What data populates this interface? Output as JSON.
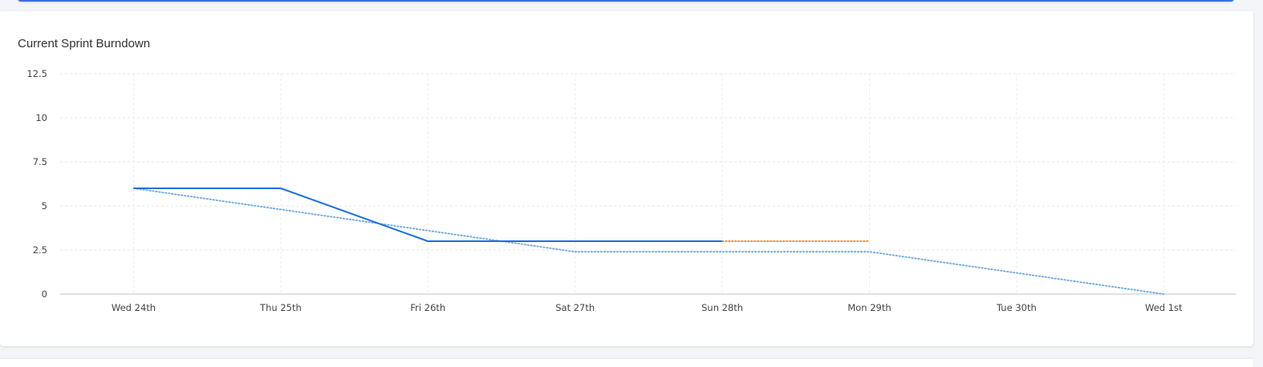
{
  "card": {
    "title": "Current Sprint Burndown"
  },
  "chart_data": {
    "type": "line",
    "title": "Current Sprint Burndown",
    "categories": [
      "Wed 24th",
      "Thu 25th",
      "Fri 26th",
      "Sat 27th",
      "Sun 28th",
      "Mon 29th",
      "Tue 30th",
      "Wed 1st"
    ],
    "ylim": [
      0,
      12.5
    ],
    "yticks": [
      "12.5",
      "10",
      "7.5",
      "5",
      "2.5",
      "0"
    ],
    "grid": true,
    "legend": "none",
    "series": [
      {
        "values": [
          6,
          6,
          3,
          3,
          3,
          null,
          null,
          null
        ],
        "style": "solid",
        "color": "#1a6fe0"
      },
      {
        "values": [
          null,
          null,
          null,
          null,
          3,
          3,
          null,
          null
        ],
        "style": "dotted",
        "color": "#f07d1a"
      },
      {
        "values": [
          6,
          4.8,
          3.6,
          2.4,
          2.4,
          2.4,
          1.2,
          0
        ],
        "style": "dotted",
        "color": "#6aa8e4"
      }
    ]
  }
}
